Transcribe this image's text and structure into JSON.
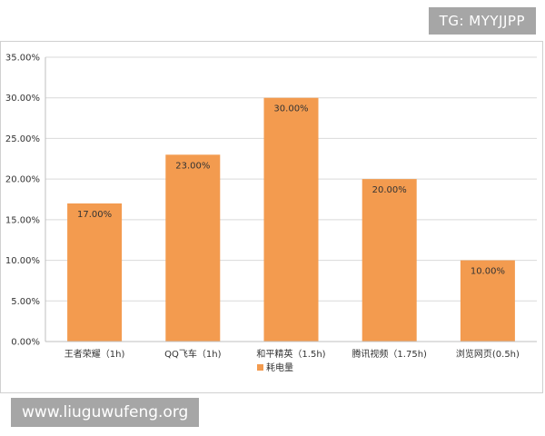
{
  "watermarks": {
    "tg": "TG: MYYJJPP",
    "site": "www.liuguwufeng.org"
  },
  "chart_data": {
    "type": "bar",
    "categories": [
      "王者荣耀（1h)",
      "QQ飞车（1h)",
      "和平精英（1.5h)",
      "腾讯视频（1.75h)",
      "浏览网页(0.5h)"
    ],
    "series": [
      {
        "name": "耗电量",
        "values": [
          17,
          23,
          30,
          20,
          10
        ],
        "labels": [
          "17.00%",
          "23.00%",
          "30.00%",
          "20.00%",
          "10.00%"
        ],
        "color": "#f39b4f"
      }
    ],
    "y_ticks": [
      "0.00%",
      "5.00%",
      "10.00%",
      "15.00%",
      "20.00%",
      "25.00%",
      "30.00%",
      "35.00%"
    ],
    "ylim": [
      0,
      35
    ],
    "y_step": 5,
    "grid": true,
    "legend_position": "bottom",
    "colors": {
      "bar": "#f39b4f",
      "grid": "#d9d9d9",
      "axis": "#bfbfbf",
      "text": "#333333"
    }
  }
}
